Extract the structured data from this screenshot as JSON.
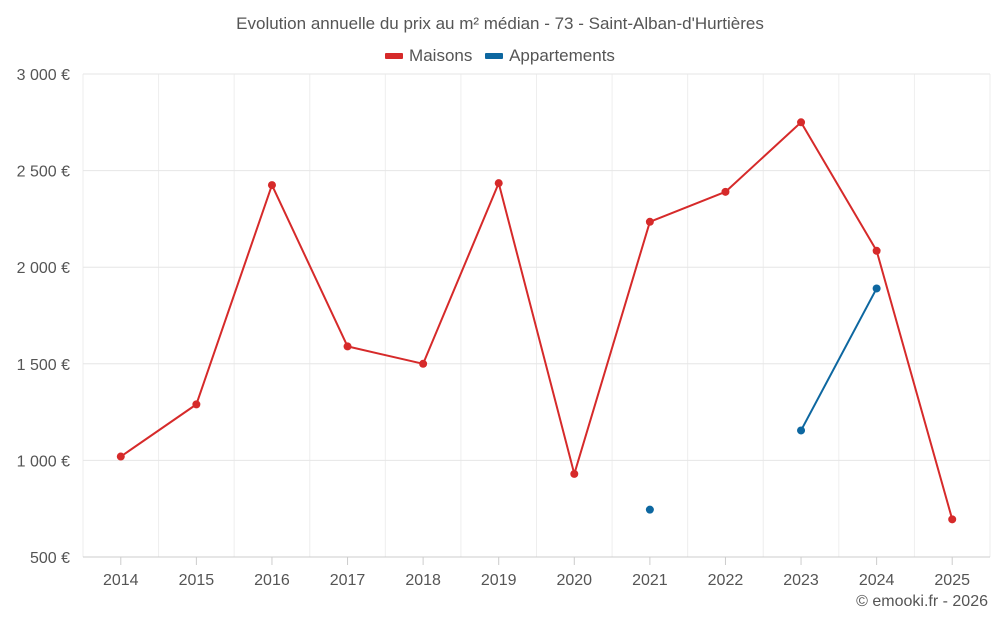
{
  "chart_data": {
    "type": "line",
    "title": "Evolution annuelle du prix au m² médian - 73 - Saint-Alban-d'Hurtières",
    "categories": [
      "2014",
      "2015",
      "2016",
      "2017",
      "2018",
      "2019",
      "2020",
      "2021",
      "2022",
      "2023",
      "2024",
      "2025"
    ],
    "y_tick_labels": [
      "500 €",
      "1 000 €",
      "1 500 €",
      "2 000 €",
      "2 500 €",
      "3 000 €"
    ],
    "y_ticks": [
      500,
      1000,
      1500,
      2000,
      2500,
      3000
    ],
    "ylim": [
      500,
      3000
    ],
    "grid": true,
    "legend_position": "top-center",
    "series": [
      {
        "name": "Maisons",
        "color": "#d62a2a",
        "values": [
          1020,
          1290,
          2425,
          1590,
          1500,
          2435,
          930,
          2235,
          2390,
          2750,
          2085,
          695
        ]
      },
      {
        "name": "Appartements",
        "color": "#0d67a0",
        "values": [
          null,
          null,
          null,
          null,
          null,
          null,
          null,
          745,
          null,
          1155,
          1890,
          null
        ]
      }
    ]
  },
  "footer": {
    "credit": "© emooki.fr - 2026"
  }
}
